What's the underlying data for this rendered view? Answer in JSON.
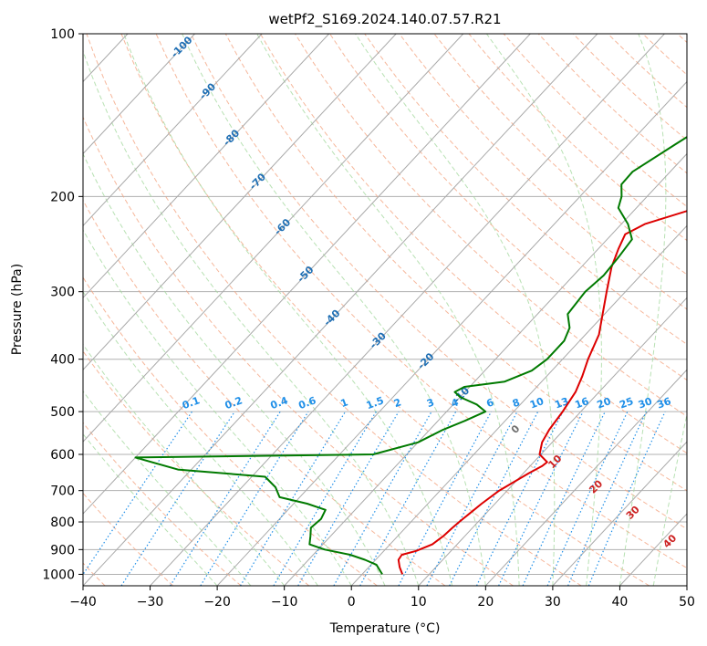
{
  "chart_data": {
    "type": "line",
    "title": "wetPf2_S169.2024.140.07.57.R21",
    "xlabel": "Temperature (°C)",
    "ylabel": "Pressure (hPa)",
    "xlim": [
      -40,
      50
    ],
    "ylim": [
      1050,
      100
    ],
    "y_scale": "log",
    "grid": true,
    "x_ticks": [
      "−40",
      "−30",
      "−20",
      "−10",
      "0",
      "10",
      "20",
      "30",
      "40",
      "50"
    ],
    "y_ticks": [
      "100",
      "200",
      "300",
      "400",
      "500",
      "600",
      "700",
      "800",
      "900",
      "1000"
    ],
    "y_tick_values": [
      100,
      200,
      300,
      400,
      500,
      600,
      700,
      800,
      900,
      1000
    ],
    "series": [
      {
        "role": "temperature",
        "color": "#dd0000",
        "points": [
          [
            1000,
            6.0
          ],
          [
            970,
            4.6
          ],
          [
            940,
            3.4
          ],
          [
            920,
            3.2
          ],
          [
            905,
            4.8
          ],
          [
            880,
            6.3
          ],
          [
            850,
            6.8
          ],
          [
            820,
            7.0
          ],
          [
            800,
            7.2
          ],
          [
            770,
            7.6
          ],
          [
            740,
            8.0
          ],
          [
            700,
            8.8
          ],
          [
            670,
            10.0
          ],
          [
            650,
            10.8
          ],
          [
            630,
            11.8
          ],
          [
            620,
            12.0
          ],
          [
            600,
            9.8
          ],
          [
            570,
            8.5
          ],
          [
            540,
            7.8
          ],
          [
            500,
            7.3
          ],
          [
            460,
            6.5
          ],
          [
            430,
            5.3
          ],
          [
            400,
            3.8
          ],
          [
            360,
            2.0
          ],
          [
            330,
            -0.3
          ],
          [
            300,
            -2.8
          ],
          [
            270,
            -5.5
          ],
          [
            250,
            -7.0
          ],
          [
            235,
            -8.0
          ],
          [
            225,
            -6.5
          ],
          [
            210,
            -1.0
          ],
          [
            200,
            1.8
          ],
          [
            185,
            4.8
          ],
          [
            170,
            6.8
          ],
          [
            150,
            10.3
          ],
          [
            130,
            14.5
          ],
          [
            118,
            16.8
          ],
          [
            110,
            17.5
          ],
          [
            100,
            19.3
          ]
        ]
      },
      {
        "role": "dewpoint",
        "color": "#007a00",
        "points": [
          [
            1000,
            3.0
          ],
          [
            960,
            0.8
          ],
          [
            940,
            -1.6
          ],
          [
            920,
            -4.5
          ],
          [
            900,
            -9.0
          ],
          [
            880,
            -12.0
          ],
          [
            850,
            -13.0
          ],
          [
            820,
            -14.1
          ],
          [
            790,
            -13.8
          ],
          [
            760,
            -14.4
          ],
          [
            740,
            -18.0
          ],
          [
            720,
            -23.0
          ],
          [
            690,
            -25.0
          ],
          [
            660,
            -28.0
          ],
          [
            640,
            -42.0
          ],
          [
            608,
            -50.0
          ],
          [
            600,
            -15.0
          ],
          [
            570,
            -10.0
          ],
          [
            540,
            -8.0
          ],
          [
            520,
            -6.0
          ],
          [
            500,
            -4.2
          ],
          [
            485,
            -6.5
          ],
          [
            470,
            -10.0
          ],
          [
            460,
            -11.5
          ],
          [
            450,
            -10.8
          ],
          [
            440,
            -5.5
          ],
          [
            420,
            -3.0
          ],
          [
            400,
            -2.3
          ],
          [
            370,
            -2.3
          ],
          [
            350,
            -3.3
          ],
          [
            330,
            -5.5
          ],
          [
            300,
            -6.0
          ],
          [
            280,
            -5.5
          ],
          [
            260,
            -5.8
          ],
          [
            240,
            -6.3
          ],
          [
            225,
            -9.0
          ],
          [
            210,
            -12.7
          ],
          [
            200,
            -13.8
          ],
          [
            190,
            -15.5
          ],
          [
            180,
            -15.6
          ],
          [
            160,
            -13.0
          ],
          [
            140,
            -10.0
          ],
          [
            120,
            -5.5
          ],
          [
            110,
            -3.0
          ],
          [
            100,
            0.3
          ]
        ]
      }
    ],
    "mixing_ratio_labels": [
      "0.1",
      "0.2",
      "0.4",
      "0.6",
      "1",
      "1.5",
      "2",
      "3",
      "4",
      "6",
      "8",
      "10",
      "13",
      "16",
      "20",
      "25",
      "30",
      "36"
    ],
    "dry_adiabat_labels": [
      "-100",
      "-90",
      "-80",
      "-70",
      "-60",
      "-50",
      "-40",
      "-30",
      "-20",
      "-10"
    ],
    "moist_adiabat_labels": [
      "0",
      "10",
      "20",
      "30",
      "40"
    ],
    "colors": {
      "temperature": "#dd0000",
      "dewpoint": "#007a00",
      "isotherm": "#a9a9a9",
      "dry_adiabat": "#f4a582",
      "moist_adiabat": "#a6d9a0",
      "mixing_ratio": "#1f8fe8",
      "dry_label": "#1f6fb4",
      "moist_label": "#cc2222",
      "zero_label": "#707070",
      "isobar": "#b0b0b0"
    }
  }
}
